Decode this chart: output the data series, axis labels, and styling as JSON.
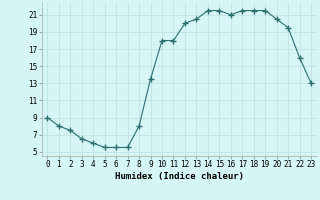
{
  "x": [
    0,
    1,
    2,
    3,
    4,
    5,
    6,
    7,
    8,
    9,
    10,
    11,
    12,
    13,
    14,
    15,
    16,
    17,
    18,
    19,
    20,
    21,
    22,
    23
  ],
  "y": [
    9,
    8,
    7.5,
    6.5,
    6,
    5.5,
    5.5,
    5.5,
    8,
    13.5,
    18,
    18,
    20,
    20.5,
    21.5,
    21.5,
    21,
    21.5,
    21.5,
    21.5,
    20.5,
    19.5,
    16,
    13
  ],
  "line_color": "#2d6e6e",
  "marker": "+",
  "marker_size": 4,
  "marker_lw": 1.0,
  "bg_color": "#d6f5f5",
  "grid_color": "#c0e0e0",
  "xlabel": "Humidex (Indice chaleur)",
  "xlim": [
    -0.5,
    23.5
  ],
  "ylim": [
    4.5,
    22.5
  ],
  "xticks": [
    0,
    1,
    2,
    3,
    4,
    5,
    6,
    7,
    8,
    9,
    10,
    11,
    12,
    13,
    14,
    15,
    16,
    17,
    18,
    19,
    20,
    21,
    22,
    23
  ],
  "yticks": [
    5,
    7,
    9,
    11,
    13,
    15,
    17,
    19,
    21
  ],
  "label_fontsize": 6.5,
  "tick_fontsize": 5.5
}
